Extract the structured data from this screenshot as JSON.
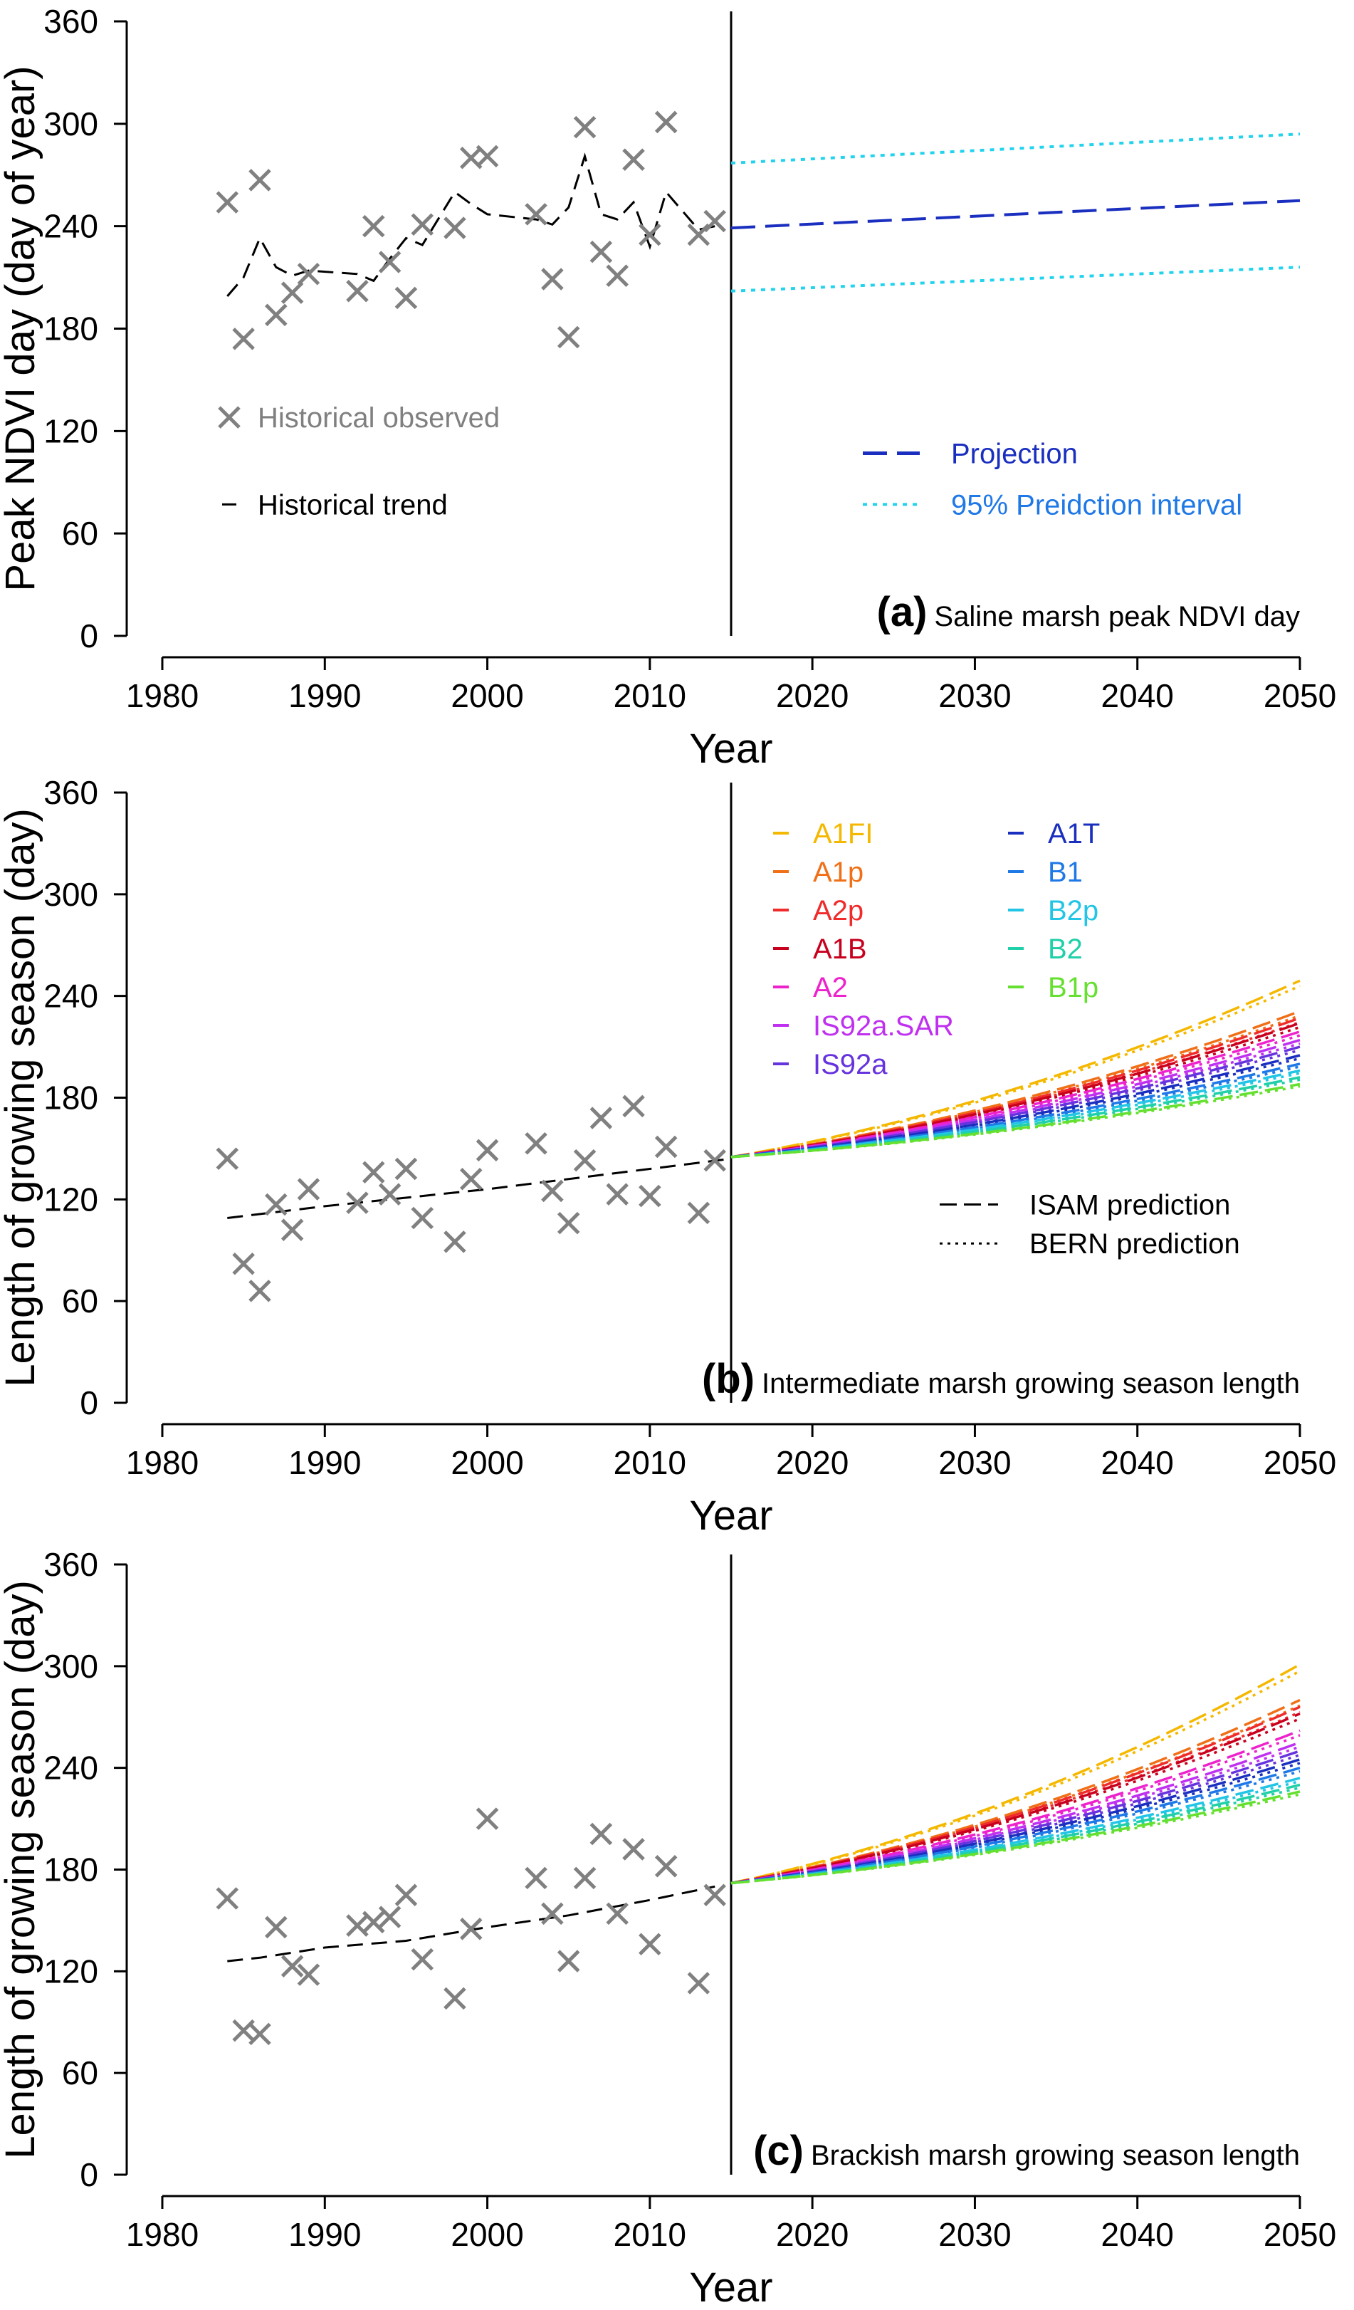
{
  "chart_data": [
    {
      "type": "line",
      "panel_letter": "(a)",
      "panel_title": "Saline marsh peak NDVI day",
      "xlabel": "Year",
      "ylabel": "Peak NDVI day (day of year)",
      "xlim": [
        1980,
        2050
      ],
      "ylim": [
        0,
        360
      ],
      "xticks": [
        "1980",
        "1990",
        "2000",
        "2010",
        "2020",
        "2030",
        "2040",
        "2050"
      ],
      "yticks": [
        "0",
        "60",
        "120",
        "180",
        "240",
        "300",
        "360"
      ],
      "divider_year": 2015,
      "observed": {
        "name": "Historical observed",
        "color": "#808080",
        "x": [
          1984,
          1985,
          1986,
          1987,
          1988,
          1989,
          1992,
          1993,
          1994,
          1995,
          1996,
          1998,
          1999,
          2000,
          2003,
          2004,
          2005,
          2006,
          2007,
          2008,
          2009,
          2010,
          2011,
          2013,
          2014
        ],
        "y": [
          254,
          174,
          267,
          188,
          201,
          212,
          202,
          240,
          219,
          198,
          241,
          239,
          280,
          281,
          247,
          209,
          175,
          298,
          225,
          211,
          279,
          235,
          301,
          235,
          243
        ]
      },
      "trend": {
        "name": "Historical trend",
        "color": "#000000",
        "x": [
          1984,
          1985,
          1986,
          1987,
          1988,
          1989,
          1992,
          1993,
          1994,
          1995,
          1996,
          1998,
          1999,
          2000,
          2003,
          2004,
          2005,
          2006,
          2007,
          2008,
          2009,
          2010,
          2011,
          2013,
          2014
        ],
        "y": [
          199,
          210,
          233,
          216,
          211,
          214,
          212,
          208,
          221,
          233,
          229,
          260,
          253,
          247,
          244,
          241,
          251,
          281,
          247,
          244,
          254,
          228,
          260,
          238,
          240
        ]
      },
      "projection": {
        "name": "Projection",
        "color": "#1a2fbf",
        "x": [
          2015,
          2050
        ],
        "y": [
          239,
          255
        ]
      },
      "interval": {
        "name": "95% Preidction interval",
        "color": "#22d3ee",
        "x": [
          2015,
          2050
        ],
        "upper": [
          277,
          294
        ],
        "lower": [
          202,
          216
        ]
      }
    },
    {
      "type": "line",
      "panel_letter": "(b)",
      "panel_title": "Intermediate marsh growing season length",
      "xlabel": "Year",
      "ylabel": "Length of growing season (day)",
      "xlim": [
        1980,
        2050
      ],
      "ylim": [
        0,
        360
      ],
      "xticks": [
        "1980",
        "1990",
        "2000",
        "2010",
        "2020",
        "2030",
        "2040",
        "2050"
      ],
      "yticks": [
        "0",
        "60",
        "120",
        "180",
        "240",
        "300",
        "360"
      ],
      "divider_year": 2015,
      "observed": {
        "color": "#808080",
        "x": [
          1984,
          1985,
          1986,
          1987,
          1988,
          1989,
          1992,
          1993,
          1994,
          1995,
          1996,
          1998,
          1999,
          2000,
          2003,
          2004,
          2005,
          2006,
          2007,
          2008,
          2009,
          2010,
          2011,
          2013,
          2014
        ],
        "y": [
          144,
          82,
          66,
          117,
          102,
          126,
          118,
          136,
          123,
          138,
          109,
          95,
          132,
          149,
          153,
          125,
          106,
          143,
          168,
          123,
          175,
          122,
          151,
          112,
          143
        ]
      },
      "trend": {
        "color": "#000000",
        "x": [
          1984,
          1990,
          2000,
          2010,
          2015
        ],
        "y": [
          109,
          116,
          126,
          138,
          144
        ]
      },
      "scenarios": [
        {
          "name": "A1FI",
          "color": "#f5b800",
          "end": 249
        },
        {
          "name": "A1p",
          "color": "#f07018",
          "end": 231
        },
        {
          "name": "A2p",
          "color": "#ef2b2b",
          "end": 227
        },
        {
          "name": "A1B",
          "color": "#c8001e",
          "end": 224
        },
        {
          "name": "A2",
          "color": "#ee22cc",
          "end": 219
        },
        {
          "name": "IS92a.SAR",
          "color": "#c030f0",
          "end": 214
        },
        {
          "name": "IS92a",
          "color": "#6633dd",
          "end": 210
        },
        {
          "name": "A1T",
          "color": "#1a2fbf",
          "end": 205
        },
        {
          "name": "B1",
          "color": "#1e78e6",
          "end": 200
        },
        {
          "name": "B2p",
          "color": "#22c5e5",
          "end": 196
        },
        {
          "name": "B2",
          "color": "#20d0a8",
          "end": 192
        },
        {
          "name": "B1p",
          "color": "#66e030",
          "end": 188
        }
      ],
      "scenario_start": {
        "year": 2015,
        "value": 145
      },
      "bern_ratio": 0.97,
      "model_legend": {
        "isam": "ISAM prediction",
        "bern": "BERN prediction"
      }
    },
    {
      "type": "line",
      "panel_letter": "(c)",
      "panel_title": "Brackish marsh growing season length",
      "xlabel": "Year",
      "ylabel": "Length of growing season (day)",
      "xlim": [
        1980,
        2050
      ],
      "ylim": [
        0,
        360
      ],
      "xticks": [
        "1980",
        "1990",
        "2000",
        "2010",
        "2020",
        "2030",
        "2040",
        "2050"
      ],
      "yticks": [
        "0",
        "60",
        "120",
        "180",
        "240",
        "300",
        "360"
      ],
      "divider_year": 2015,
      "observed": {
        "color": "#808080",
        "x": [
          1984,
          1985,
          1986,
          1987,
          1988,
          1989,
          1992,
          1993,
          1994,
          1995,
          1996,
          1998,
          1999,
          2000,
          2003,
          2004,
          2005,
          2006,
          2007,
          2008,
          2009,
          2010,
          2011,
          2013,
          2014
        ],
        "y": [
          163,
          85,
          83,
          146,
          123,
          118,
          147,
          149,
          152,
          165,
          127,
          104,
          145,
          210,
          175,
          154,
          126,
          175,
          201,
          154,
          192,
          136,
          182,
          113,
          165
        ]
      },
      "trend": {
        "color": "#000000",
        "x": [
          1984,
          1986,
          1990,
          1995,
          2000,
          2005,
          2010,
          2014
        ],
        "y": [
          126,
          128,
          134,
          138,
          146,
          153,
          162,
          170
        ]
      },
      "scenarios": [
        {
          "name": "A1FI",
          "color": "#f5b800",
          "end": 301
        },
        {
          "name": "A1p",
          "color": "#f07018",
          "end": 280
        },
        {
          "name": "A2p",
          "color": "#ef2b2b",
          "end": 276
        },
        {
          "name": "A1B",
          "color": "#c8001e",
          "end": 272
        },
        {
          "name": "A2",
          "color": "#ee22cc",
          "end": 262
        },
        {
          "name": "IS92a.SAR",
          "color": "#c030f0",
          "end": 255
        },
        {
          "name": "IS92a",
          "color": "#6633dd",
          "end": 250
        },
        {
          "name": "A1T",
          "color": "#1a2fbf",
          "end": 245
        },
        {
          "name": "B1",
          "color": "#1e78e6",
          "end": 240
        },
        {
          "name": "B2p",
          "color": "#22c5e5",
          "end": 234
        },
        {
          "name": "B2",
          "color": "#20d0a8",
          "end": 230
        },
        {
          "name": "B1p",
          "color": "#66e030",
          "end": 226
        }
      ],
      "scenario_start": {
        "year": 2015,
        "value": 172
      },
      "bern_ratio": 0.97
    }
  ]
}
